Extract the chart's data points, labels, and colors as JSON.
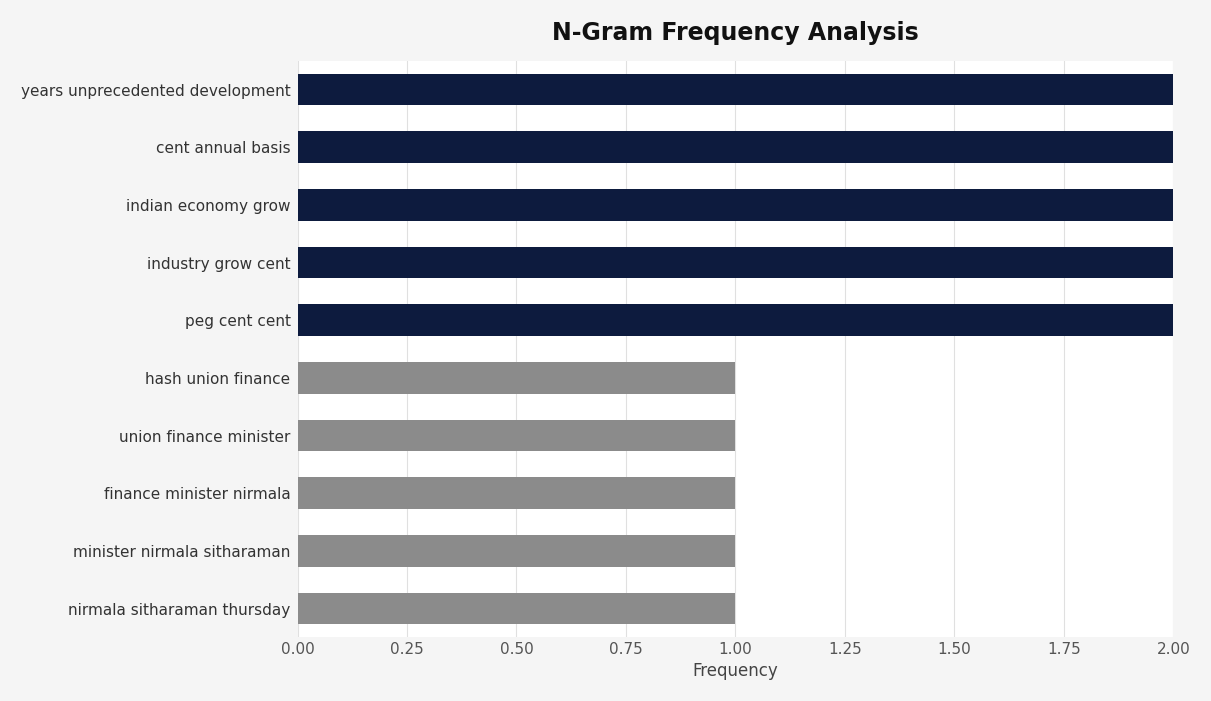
{
  "title": "N-Gram Frequency Analysis",
  "xlabel": "Frequency",
  "categories": [
    "nirmala sitharaman thursday",
    "minister nirmala sitharaman",
    "finance minister nirmala",
    "union finance minister",
    "hash union finance",
    "peg cent cent",
    "industry grow cent",
    "indian economy grow",
    "cent annual basis",
    "years unprecedented development"
  ],
  "values": [
    1,
    1,
    1,
    1,
    1,
    2,
    2,
    2,
    2,
    2
  ],
  "bar_colors": [
    "#8b8b8b",
    "#8b8b8b",
    "#8b8b8b",
    "#8b8b8b",
    "#8b8b8b",
    "#0d1b3e",
    "#0d1b3e",
    "#0d1b3e",
    "#0d1b3e",
    "#0d1b3e"
  ],
  "xlim": [
    0,
    2.0
  ],
  "xticks": [
    0.0,
    0.25,
    0.5,
    0.75,
    1.0,
    1.25,
    1.5,
    1.75,
    2.0
  ],
  "xtick_labels": [
    "0.00",
    "0.25",
    "0.50",
    "0.75",
    "1.00",
    "1.25",
    "1.50",
    "1.75",
    "2.00"
  ],
  "plot_background_color": "#ffffff",
  "fig_background_color": "#f5f5f5",
  "title_fontsize": 17,
  "label_fontsize": 12,
  "tick_fontsize": 11,
  "bar_height": 0.55,
  "navy_color": "#0d1b3e",
  "gray_color": "#8b8b8b",
  "ytick_fontsize": 11
}
